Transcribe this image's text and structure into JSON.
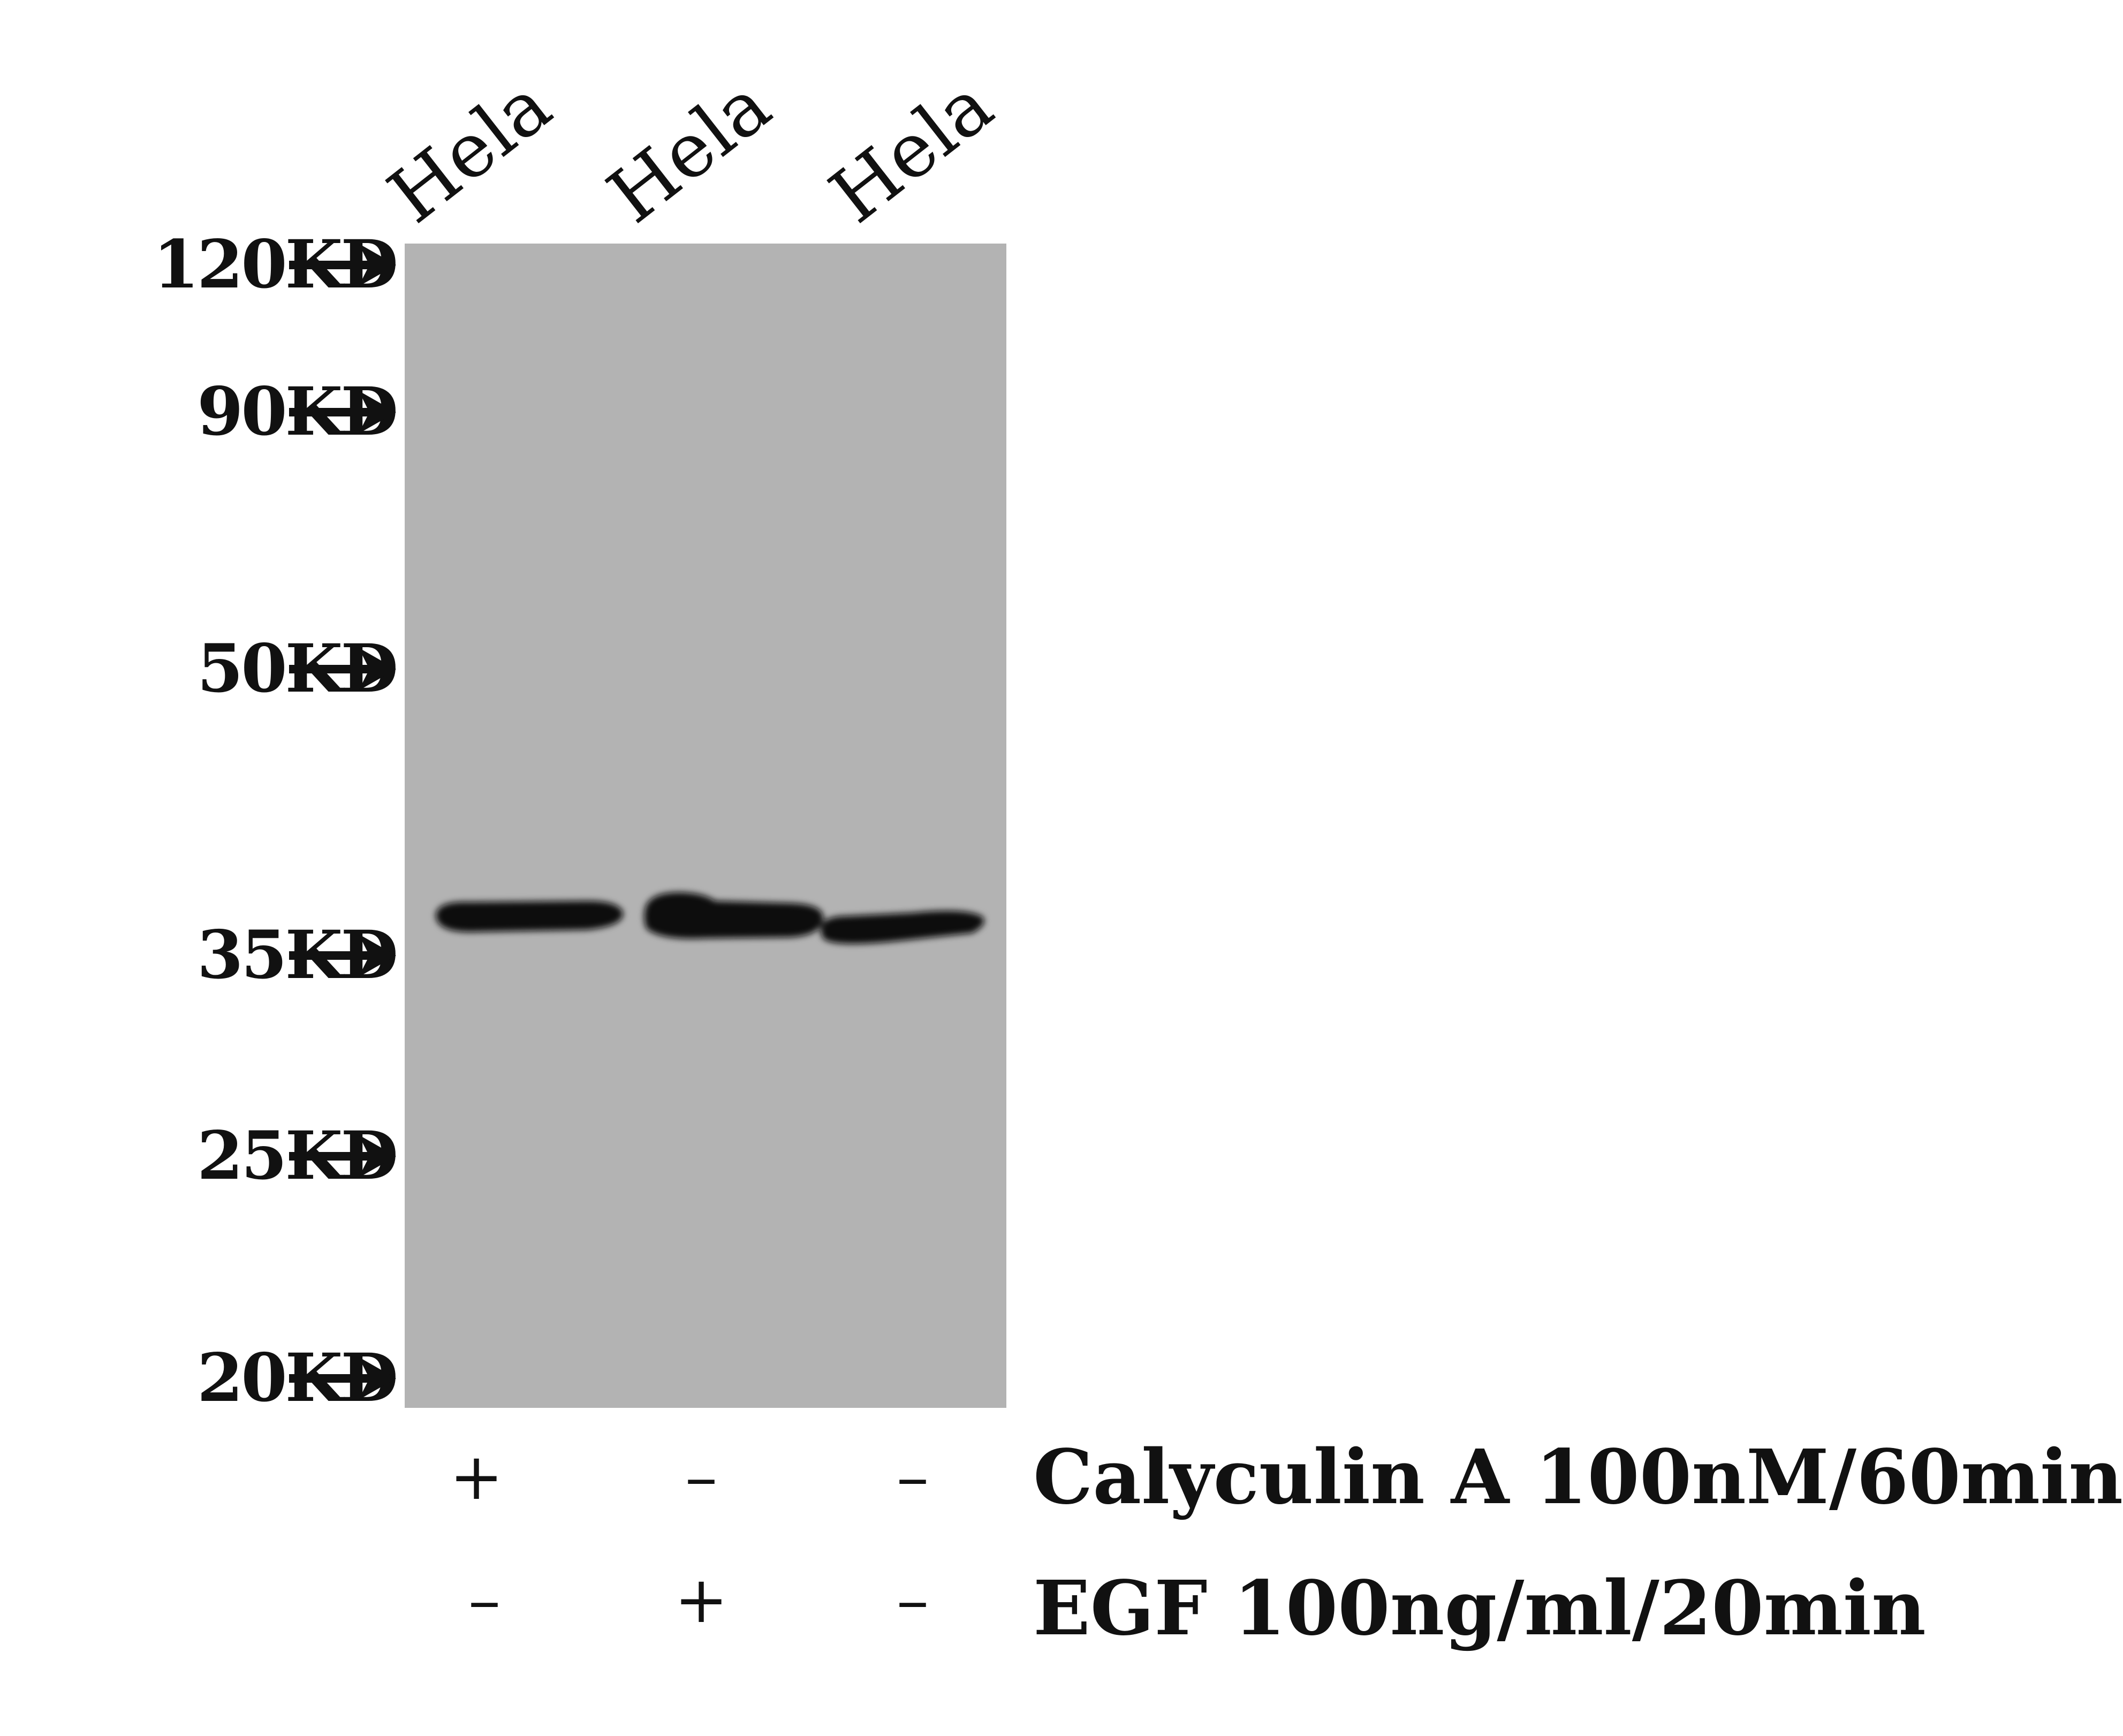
{
  "lanes": [
    {
      "label": "Hela"
    },
    {
      "label": "Hela"
    },
    {
      "label": "Hela"
    }
  ],
  "markers": [
    {
      "label": "120KD",
      "arrow": "arrow-right-icon"
    },
    {
      "label": "90KD",
      "arrow": "arrow-right-icon"
    },
    {
      "label": "50KD",
      "arrow": "arrow-right-icon"
    },
    {
      "label": "35KD",
      "arrow": "arrow-right-icon"
    },
    {
      "label": "25KD",
      "arrow": "arrow-right-icon"
    },
    {
      "label": "20KD",
      "arrow": "arrow-right-icon"
    }
  ],
  "treatments": [
    {
      "label": "Calyculin A 100nM/60min",
      "signs": [
        "+",
        "–",
        "–"
      ]
    },
    {
      "label": "EGF 100ng/ml/20min",
      "signs": [
        "–",
        "+",
        "–"
      ]
    }
  ],
  "colors": {
    "membrane": "#b3b3b3",
    "band": "#0c0c0c"
  }
}
